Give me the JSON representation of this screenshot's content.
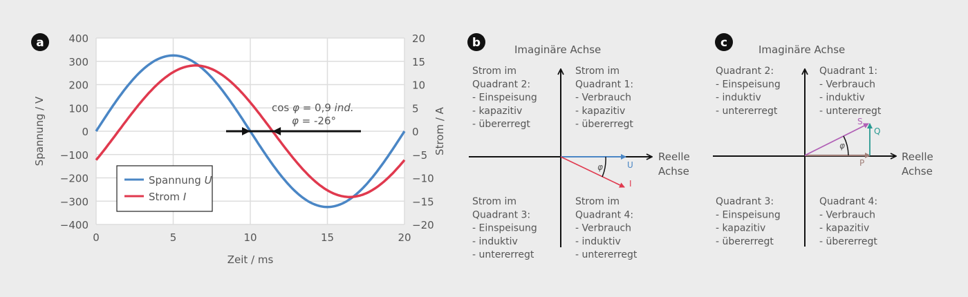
{
  "chart_data": {
    "type": "line",
    "panel_label": "a",
    "xlabel": "Zeit / ms",
    "ylabel_left": "Spannung / V",
    "ylabel_right": "Strom / A",
    "xlim": [
      0,
      20
    ],
    "ylim_left": [
      -400,
      400
    ],
    "ylim_right": [
      -20,
      20
    ],
    "xticks": [
      "0",
      "5",
      "10",
      "15",
      "20"
    ],
    "yticks_left": [
      "400",
      "300",
      "200",
      "100",
      "0",
      "−100",
      "−200",
      "−300",
      "−400"
    ],
    "yticks_right": [
      "20",
      "15",
      "10",
      "5",
      "0",
      "−5",
      "−10",
      "−15",
      "−20"
    ],
    "grid": true,
    "legend_placement": "bottom-left",
    "series": [
      {
        "name": "Spannung",
        "name_symbol": "U",
        "axis": "left",
        "function": "sine",
        "amplitude": 325,
        "frequency_hz": 50,
        "phase_deg": 0,
        "color": "#4a86c5"
      },
      {
        "name": "Strom",
        "name_symbol": "I",
        "axis": "right",
        "function": "sine",
        "amplitude": 14.1,
        "frequency_hz": 50,
        "phase_deg": -26,
        "color": "#e0394e"
      }
    ],
    "annotation": {
      "line1_pre": "cos ",
      "line1_phi": "φ",
      "line1_mid": " = 0,9 ",
      "line1_ind": "ind.",
      "line2_phi": "φ",
      "line2_rest": " = -26°",
      "arrow_from_ms": 10,
      "arrow_to_ms": 11.44
    }
  },
  "diagram_b": {
    "panel_label": "b",
    "imag_axis": "Imaginäre Achse",
    "real_axis_1": "Reelle",
    "real_axis_2": "Achse",
    "quadrants": {
      "q2": [
        "Strom im",
        "Quadrant 2:",
        "- Einspeisung",
        "- kapazitiv",
        "- übererregt"
      ],
      "q1": [
        "Strom im",
        "Quadrant 1:",
        "- Verbrauch",
        "- kapazitiv",
        "- übererregt"
      ],
      "q3": [
        "Strom im",
        "Quadrant 3:",
        "- Einspeisung",
        "- induktiv",
        "- untererregt"
      ],
      "q4": [
        "Strom im",
        "Quadrant 4:",
        "- Verbrauch",
        "- induktiv",
        "- untererregt"
      ]
    },
    "vector_u": {
      "label": "U",
      "color": "#4a86c5"
    },
    "vector_i": {
      "label": "I",
      "color": "#e0394e"
    },
    "angle": "φ"
  },
  "diagram_c": {
    "panel_label": "c",
    "imag_axis": "Imaginäre Achse",
    "real_axis_1": "Reelle",
    "real_axis_2": "Achse",
    "quadrants": {
      "q2": [
        "Quadrant 2:",
        "- Einspeisung",
        "- induktiv",
        "- untererregt"
      ],
      "q1": [
        "Quadrant 1:",
        "- Verbrauch",
        "- induktiv",
        "- untererregt"
      ],
      "q3": [
        "Quadrant 3:",
        "- Einspeisung",
        "- kapazitiv",
        "- übererregt"
      ],
      "q4": [
        "Quadrant 4:",
        "- Verbrauch",
        "- kapazitiv",
        "- übererregt"
      ]
    },
    "vector_s": {
      "label": "S",
      "color": "#b05fb5"
    },
    "vector_q": {
      "label": "Q",
      "color": "#2a9a92"
    },
    "vector_p": {
      "label": "P",
      "color": "#a07f78"
    },
    "angle": "φ"
  }
}
